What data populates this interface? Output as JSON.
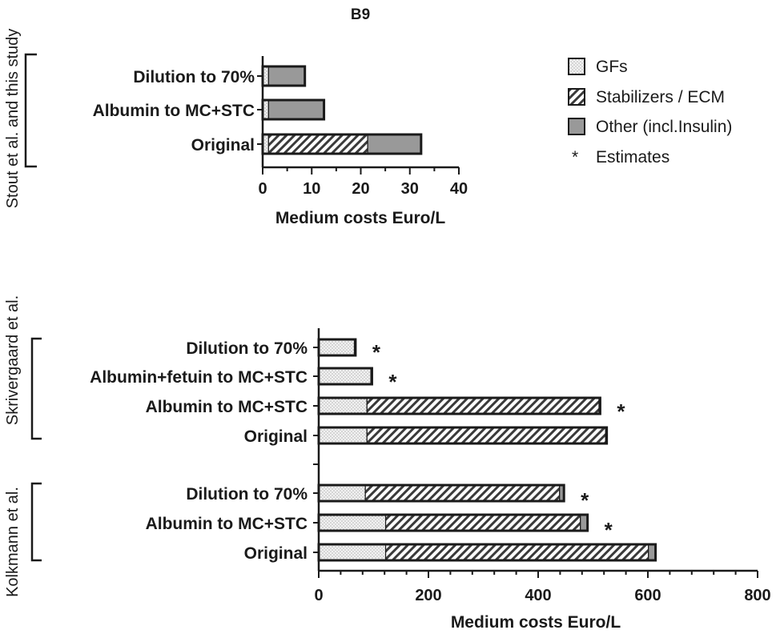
{
  "chart_data": [
    {
      "type": "bar",
      "orientation": "horizontal",
      "stacked": true,
      "title": "B9",
      "group_label": "Stout et al. and this study",
      "categories": [
        "Dilution to 70%",
        "Albumin to MC+STC",
        "Original"
      ],
      "series": [
        {
          "name": "GFs",
          "values": [
            1.2,
            1.2,
            1.2
          ]
        },
        {
          "name": "Stabilizers / ECM",
          "values": [
            0,
            0,
            20.2
          ]
        },
        {
          "name": "Other (incl.Insulin)",
          "values": [
            7.4,
            11.3,
            10.9
          ]
        }
      ],
      "estimates": [
        false,
        false,
        false
      ],
      "xlabel": "Medium costs Euro/L",
      "xlim": [
        0,
        40
      ],
      "xticks": [
        "0",
        "10",
        "20",
        "30",
        "40"
      ]
    },
    {
      "type": "bar",
      "orientation": "horizontal",
      "stacked": true,
      "groups": [
        {
          "label": "Skrivergaard et al.",
          "categories": [
            "Dilution to 70%",
            "Albumin+fetuin to MC+STC",
            "Albumin to MC+STC",
            "Original"
          ],
          "series": [
            {
              "name": "GFs",
              "values": [
                65,
                95,
                88,
                88
              ]
            },
            {
              "name": "Stabilizers / ECM",
              "values": [
                0,
                0,
                423,
                435
              ]
            },
            {
              "name": "Other (incl.Insulin)",
              "values": [
                2,
                2,
                2,
                2
              ]
            }
          ],
          "estimates": [
            true,
            true,
            true,
            false
          ]
        },
        {
          "label": "Kolkmann et al.",
          "categories": [
            "Dilution to 70%",
            "Albumin to MC+STC",
            "Original"
          ],
          "series": [
            {
              "name": "GFs",
              "values": [
                85,
                122,
                122
              ]
            },
            {
              "name": "Stabilizers / ECM",
              "values": [
                354,
                355,
                479
              ]
            },
            {
              "name": "Other (incl.Insulin)",
              "values": [
                8,
                13,
                13
              ]
            }
          ],
          "estimates": [
            true,
            true,
            false
          ]
        }
      ],
      "xlabel": "Medium costs Euro/L",
      "xlim": [
        0,
        800
      ],
      "xticks": [
        "0",
        "200",
        "400",
        "600",
        "800"
      ]
    }
  ],
  "legend": {
    "items": [
      {
        "label": "GFs",
        "pattern": "dots"
      },
      {
        "label": "Stabilizers / ECM",
        "pattern": "hatch"
      },
      {
        "label": "Other (incl.Insulin)",
        "pattern": "gray"
      }
    ],
    "estimate_symbol": "*",
    "estimate_label": "Estimates"
  },
  "colors": {
    "gfs": "#f2f2f2",
    "other": "#999999",
    "hatch": "#3a3a3a",
    "stroke": "#1a1a1a"
  }
}
